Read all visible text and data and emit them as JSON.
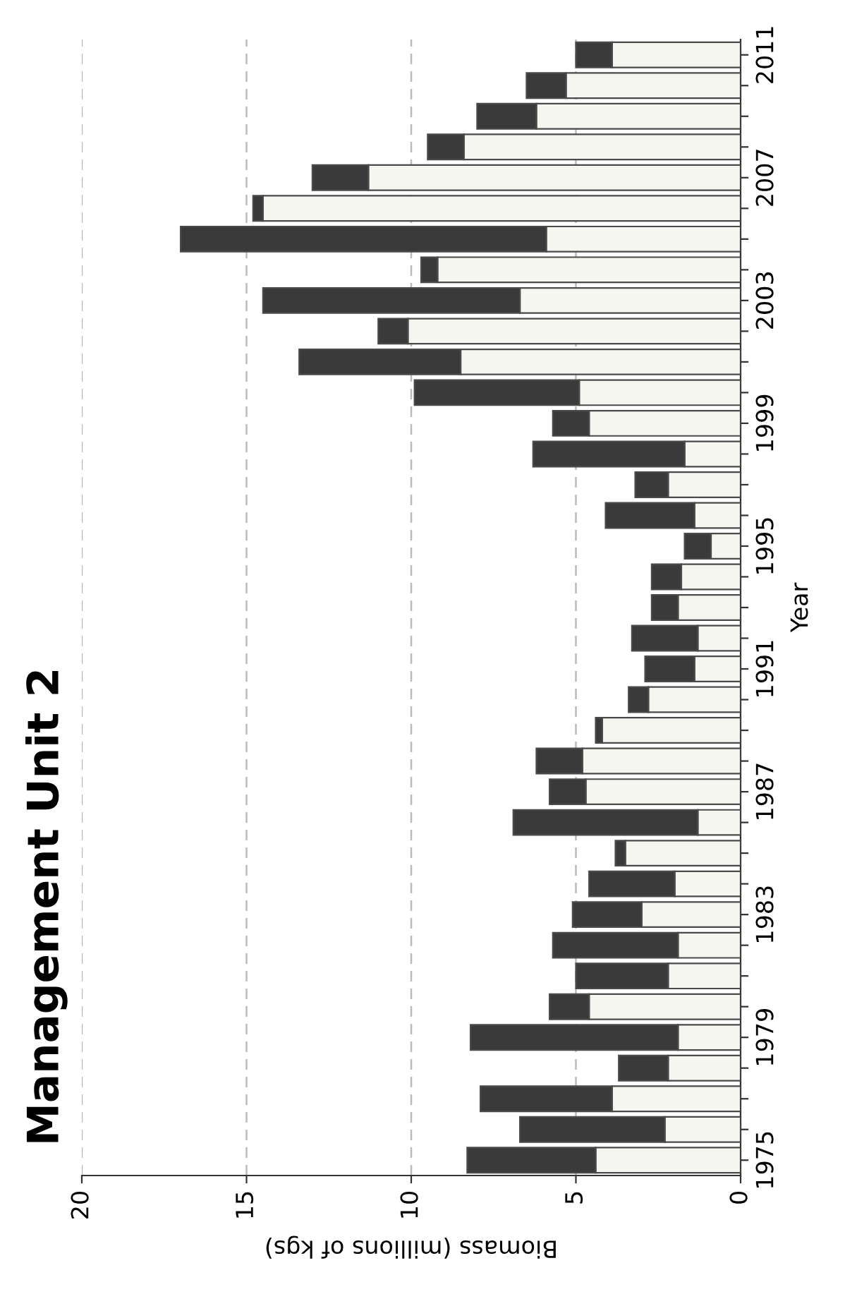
{
  "chart_data": {
    "type": "bar",
    "orientation": "horizontal",
    "stacked": true,
    "title": "Management Unit 2",
    "xlabel": "Biomass (millions of kgs)",
    "ylabel": "Year",
    "categories": [
      "2011",
      null,
      null,
      null,
      "2007",
      null,
      null,
      null,
      "2003",
      null,
      null,
      null,
      "1999",
      null,
      null,
      null,
      "1995",
      null,
      null,
      null,
      "1991",
      null,
      null,
      null,
      "1987",
      null,
      null,
      null,
      "1983",
      null,
      null,
      null,
      "1979",
      null,
      null,
      null,
      "1975"
    ],
    "series": [
      {
        "color": "#f6f6f1",
        "values": [
          3.9,
          5.3,
          6.2,
          8.4,
          11.3,
          14.5,
          5.9,
          9.2,
          6.7,
          10.1,
          8.5,
          4.9,
          4.6,
          1.7,
          2.2,
          1.4,
          0.9,
          1.8,
          1.9,
          1.3,
          1.4,
          2.8,
          4.2,
          4.8,
          4.7,
          1.3,
          3.5,
          2.0,
          3.0,
          1.9,
          2.2,
          4.6,
          1.9,
          2.2,
          3.9,
          2.3,
          4.4
        ]
      },
      {
        "color": "#3a3a3a",
        "values": [
          1.1,
          1.2,
          1.8,
          1.1,
          1.7,
          0.3,
          11.1,
          0.5,
          7.8,
          0.9,
          4.9,
          5.0,
          1.1,
          4.6,
          1.0,
          2.7,
          0.8,
          0.9,
          0.8,
          2.0,
          1.5,
          0.6,
          0.2,
          1.4,
          1.1,
          5.6,
          0.3,
          2.6,
          2.1,
          3.8,
          2.8,
          1.2,
          6.3,
          1.5,
          4.0,
          4.4,
          3.9
        ]
      }
    ],
    "xlim": [
      20,
      0
    ],
    "xticks": [
      20,
      15,
      10,
      5,
      0
    ],
    "grid": "x"
  }
}
